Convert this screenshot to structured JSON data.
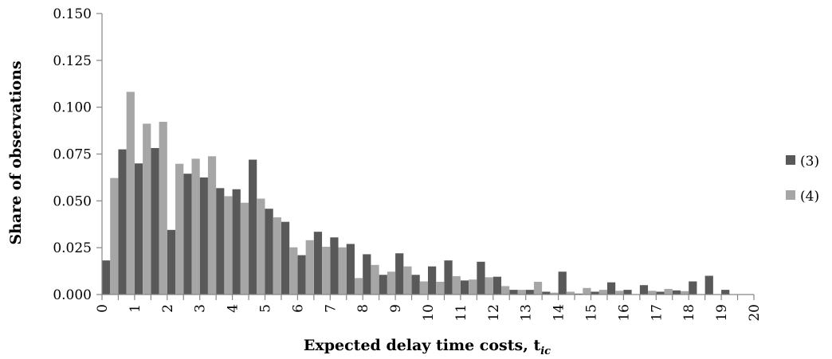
{
  "chart_data": {
    "type": "bar",
    "xlabel": "Expected delay time costs, t",
    "xlabel_subscript": "ic",
    "ylabel": "Share of observations",
    "xlim": [
      0,
      20
    ],
    "ylim": [
      0,
      0.15
    ],
    "x_ticks": [
      "0",
      "1",
      "2",
      "3",
      "4",
      "5",
      "6",
      "7",
      "8",
      "9",
      "10",
      "11",
      "12",
      "13",
      "14",
      "15",
      "16",
      "17",
      "18",
      "19",
      "20"
    ],
    "y_ticks": [
      "0.000",
      "0.025",
      "0.050",
      "0.075",
      "0.100",
      "0.125",
      "0.150"
    ],
    "bin_width": 0.5,
    "legend_position": "right",
    "grid": false,
    "series": [
      {
        "name": "(3)",
        "color": "#595959",
        "values": [
          0.0182,
          0.0775,
          0.07,
          0.0782,
          0.0345,
          0.0645,
          0.0625,
          0.0568,
          0.0562,
          0.072,
          0.0458,
          0.0388,
          0.021,
          0.0335,
          0.0305,
          0.027,
          0.0215,
          0.0105,
          0.022,
          0.0105,
          0.015,
          0.0182,
          0.0075,
          0.0175,
          0.0095,
          0.0025,
          0.0025,
          0.0015,
          0.0122,
          0.0005,
          0.0015,
          0.0065,
          0.0025,
          0.005,
          0.0015,
          0.0022,
          0.007,
          0.01,
          0.0025
        ]
      },
      {
        "name": "(4)",
        "color": "#a6a6a6",
        "values": [
          0.0622,
          0.1082,
          0.0912,
          0.0922,
          0.0698,
          0.0725,
          0.0738,
          0.0525,
          0.049,
          0.0512,
          0.0412,
          0.0252,
          0.029,
          0.0255,
          0.0252,
          0.0088,
          0.0158,
          0.0122,
          0.015,
          0.007,
          0.0068,
          0.0098,
          0.008,
          0.0092,
          0.0045,
          0.0025,
          0.0068,
          0.001,
          0.0015,
          0.0035,
          0.0025,
          0.002,
          0.0,
          0.002,
          0.003,
          0.0018,
          0.0,
          0.0,
          0.0
        ]
      }
    ]
  }
}
